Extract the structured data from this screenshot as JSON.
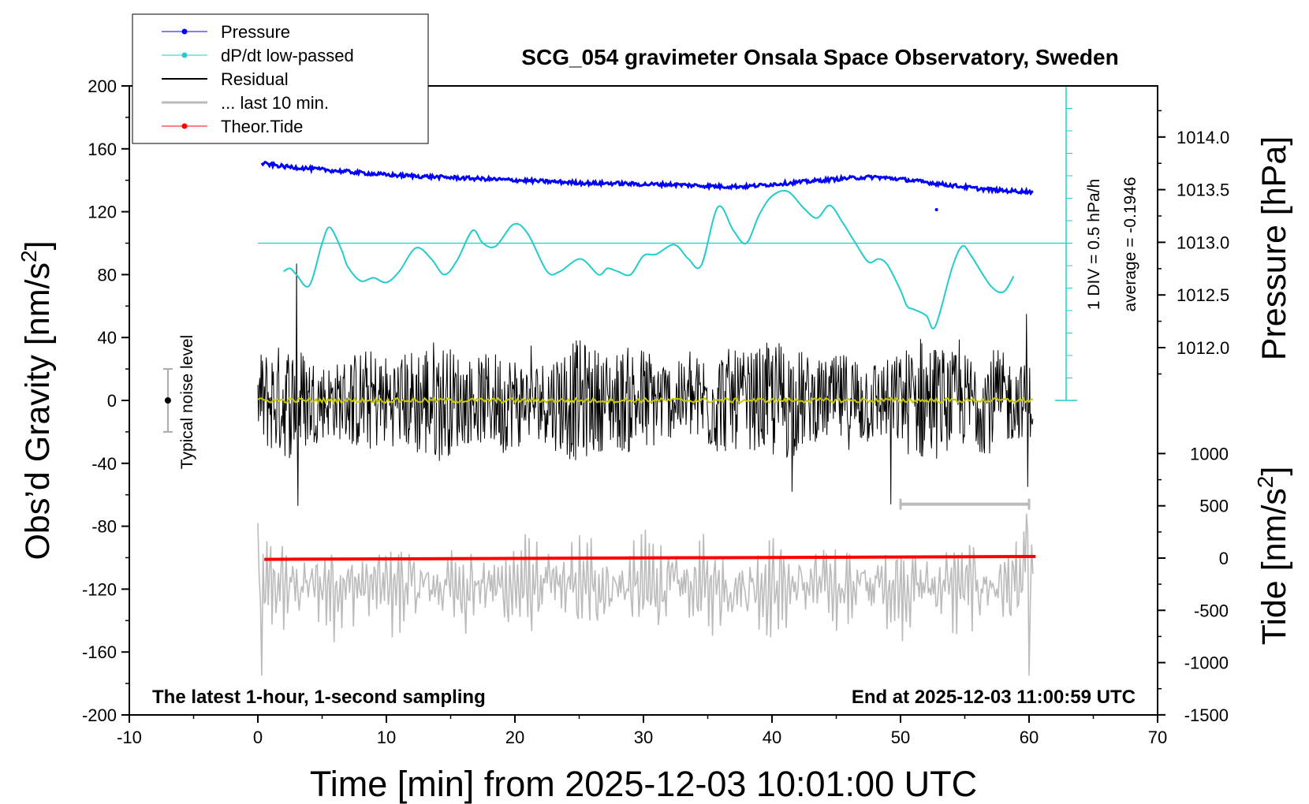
{
  "chart_data": {
    "type": "line",
    "title": "SCG_054 gravimeter Onsala Space Observatory, Sweden",
    "xlabel": "Time [min] from 2025-12-03 10:01:00 UTC",
    "ylabel_left_prefix": "Obs’d Gravity [nm/s",
    "ylabel_left_sup": "2",
    "ylabel_left_suffix": "]",
    "ylabel_right_top": "Pressure [hPa]",
    "ylabel_right_bottom_prefix": "Tide [nm/s",
    "ylabel_right_bottom_sup": "2",
    "ylabel_right_bottom_suffix": "]",
    "xlim": [
      -10,
      70
    ],
    "xticks": [
      "-10",
      "0",
      "10",
      "20",
      "30",
      "40",
      "50",
      "60",
      "70"
    ],
    "ylim": [
      -200,
      200
    ],
    "yticks": [
      "-200",
      "-160",
      "-120",
      "-80",
      "-40",
      "0",
      "40",
      "80",
      "120",
      "160",
      "200"
    ],
    "pressure_axis": {
      "range": [
        1011.5,
        1014.5
      ],
      "ticks": [
        "1012.0",
        "1012.5",
        "1013.0",
        "1013.5",
        "1014.0"
      ]
    },
    "tide_axis": {
      "range": [
        -1500,
        1000
      ],
      "ticks": [
        "-1500",
        "-1000",
        "-500",
        "0",
        "500",
        "1000"
      ]
    },
    "legend": {
      "position": "top-left",
      "items": [
        {
          "label": "Pressure",
          "color": "#0000ff"
        },
        {
          "label": "dP/dt low-passed",
          "color": "#22cccc"
        },
        {
          "label": "Residual",
          "color": "#000000"
        },
        {
          "label": "... last 10 min.",
          "color": "#bbbbbb"
        },
        {
          "label": "Theor.Tide",
          "color": "#ff0000"
        }
      ]
    },
    "annotations": {
      "bottom_left": "The latest 1-hour, 1-second sampling",
      "bottom_right": "End at 2025-12-03 11:00:59 UTC",
      "noise_label": "Typical noise level",
      "div_label": "1 DIV = 0.5 hPa/h",
      "average_label": "average = -0.1946"
    },
    "series": [
      {
        "name": "Pressure",
        "axis": "pressure",
        "color": "#0000ff",
        "x": [
          0.3,
          2,
          4,
          6,
          8,
          10,
          12,
          14,
          16,
          18,
          20,
          22,
          24,
          26,
          28,
          30,
          32,
          34,
          36,
          38,
          40,
          42,
          44,
          46,
          48,
          50,
          52,
          54,
          56,
          58,
          60.3
        ],
        "values": [
          1013.75,
          1013.72,
          1013.7,
          1013.68,
          1013.66,
          1013.64,
          1013.63,
          1013.62,
          1013.61,
          1013.6,
          1013.59,
          1013.58,
          1013.57,
          1013.56,
          1013.56,
          1013.55,
          1013.55,
          1013.54,
          1013.53,
          1013.53,
          1013.55,
          1013.57,
          1013.59,
          1013.61,
          1013.62,
          1013.6,
          1013.57,
          1013.54,
          1013.51,
          1013.49,
          1013.48
        ]
      },
      {
        "name": "dP/dt low-passed",
        "axis": "gravity",
        "color": "#22cccc",
        "reference_level": 100,
        "x": [
          2,
          2.5,
          3,
          4,
          5,
          5.6,
          6.5,
          7,
          8,
          9,
          10,
          11,
          12.3,
          13.5,
          14.5,
          15.5,
          16.7,
          17.5,
          18.5,
          19.9,
          21,
          22.5,
          23.5,
          25.1,
          26.5,
          27.2,
          28,
          29,
          30,
          31,
          32.4,
          33.5,
          34.5,
          35.8,
          37,
          38,
          39,
          40,
          41.2,
          42.5,
          43.5,
          44.5,
          45.5,
          46.5,
          47.5,
          48.3,
          49,
          50,
          50.5,
          51,
          52,
          52.7,
          54,
          54.8,
          55.5,
          57,
          58,
          58.8
        ],
        "values": [
          82,
          84,
          80,
          73,
          100,
          110,
          96,
          85,
          76,
          78,
          75,
          82,
          97,
          90,
          80,
          89,
          108,
          100,
          98,
          112,
          106,
          82,
          82,
          90,
          80,
          84,
          82,
          80,
          92,
          93,
          99,
          90,
          86,
          123,
          108,
          100,
          118,
          130,
          133,
          122,
          116,
          124,
          113,
          100,
          88,
          90,
          86,
          70,
          60,
          58,
          54,
          47,
          84,
          98,
          92,
          73,
          69,
          79
        ]
      },
      {
        "name": "Residual",
        "axis": "gravity",
        "color": "#000000",
        "style": "noise",
        "x": [
          0,
          60.3
        ],
        "amplitude": 35,
        "peak_max": 87,
        "peak_min": -67
      },
      {
        "name": "Residual smoothed",
        "axis": "gravity",
        "color": "#c8c800",
        "x": [
          0,
          60.3
        ],
        "values": [
          0,
          0
        ]
      },
      {
        "name": "... last 10 min.",
        "axis": "gravity",
        "color": "#bbbbbb",
        "x": [
          0,
          60.3
        ],
        "values_range": [
          -175,
          -78
        ],
        "center": -118
      },
      {
        "name": "Theor.Tide",
        "axis": "tide",
        "color": "#ff0000",
        "x": [
          0.5,
          60.5
        ],
        "values": [
          -12,
          15
        ]
      }
    ],
    "noise_bar": {
      "x": -7,
      "center": 0,
      "low": -20,
      "high": 20
    },
    "window_bar": {
      "x_start": 50,
      "x_end": 60,
      "y": -66
    }
  }
}
